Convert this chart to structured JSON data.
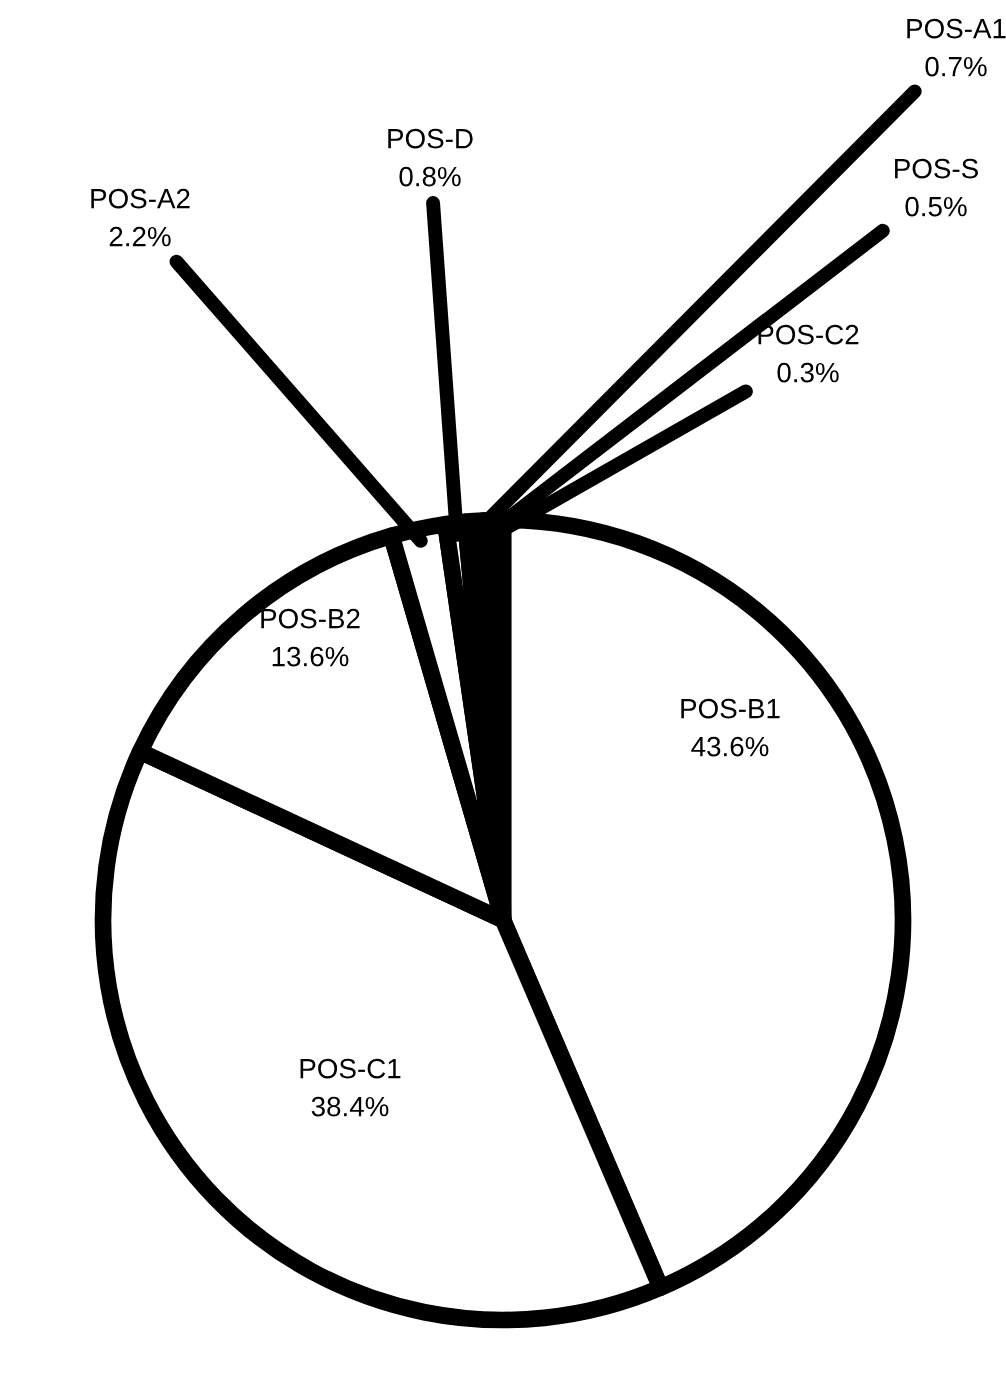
{
  "chart_data": {
    "type": "pie",
    "categories": [
      "POS-B1",
      "POS-C1",
      "POS-B2",
      "POS-A2",
      "POS-D",
      "POS-A1",
      "POS-S",
      "POS-C2"
    ],
    "values": [
      43.6,
      38.4,
      13.6,
      2.2,
      0.8,
      0.7,
      0.5,
      0.3
    ],
    "colors": [
      "#ffffff",
      "#ffffff",
      "#ffffff",
      "#ffffff",
      "#ffffff",
      "#ffffff",
      "#ffffff",
      "#ffffff"
    ],
    "value_labels": [
      "43.6%",
      "38.4%",
      "13.6%",
      "2.2%",
      "0.8%",
      "0.7%",
      "0.5%",
      "0.3%"
    ]
  }
}
